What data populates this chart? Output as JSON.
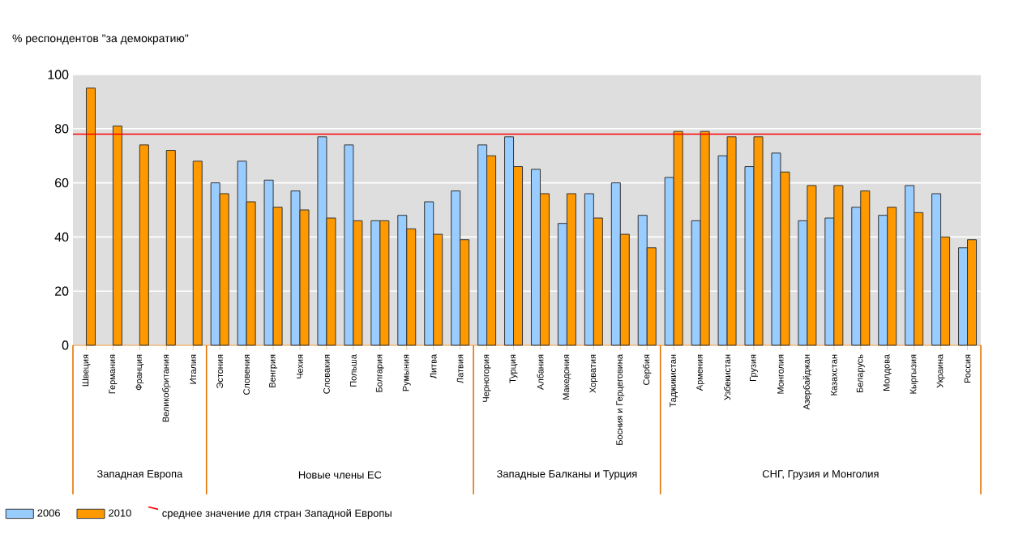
{
  "chart_data": {
    "type": "bar",
    "ylabel": "% респондентов \"за демократию\"",
    "categories": [
      "Швеция",
      "Германия",
      "Франция",
      "Великобритания",
      "Италия",
      "Эстония",
      "Словения",
      "Венгрия",
      "Чехия",
      "Словакия",
      "Польша",
      "Болгария",
      "Румыния",
      "Литва",
      "Латвия",
      "Черногория",
      "Турция",
      "Албания",
      "Македония",
      "Хорватия",
      "Босния и Герцеговина",
      "Сербия",
      "Таджикистан",
      "Армения",
      "Узбекистан",
      "Грузия",
      "Монголия",
      "Азербайджан",
      "Казахстан",
      "Беларусь",
      "Молдова",
      "Кыргызия",
      "Украина",
      "Россия"
    ],
    "series": [
      {
        "name": "2006",
        "color": "#99ccff",
        "values": [
          null,
          null,
          null,
          null,
          null,
          60,
          68,
          61,
          57,
          77,
          74,
          46,
          48,
          53,
          57,
          74,
          77,
          65,
          45,
          56,
          60,
          48,
          62,
          46,
          70,
          66,
          71,
          46,
          47,
          51,
          48,
          59,
          56,
          36
        ]
      },
      {
        "name": "2010",
        "color": "#ff9900",
        "values": [
          95,
          81,
          74,
          72,
          68,
          56,
          53,
          51,
          50,
          47,
          46,
          46,
          43,
          41,
          39,
          70,
          66,
          56,
          56,
          47,
          41,
          36,
          79,
          79,
          77,
          77,
          64,
          59,
          59,
          57,
          51,
          49,
          40,
          39
        ]
      }
    ],
    "ylim": [
      0,
      100
    ],
    "yticks": [
      0,
      20,
      40,
      60,
      80,
      100
    ],
    "grid": "y",
    "legend": "bottom left",
    "ref_lines": [
      {
        "axis": "y",
        "value": 78,
        "label": "среднее значение для стран Западной Европы",
        "color": "#ff0000"
      }
    ],
    "annotations": [
      "Западная Европа",
      "Новые члены ЕС",
      "Западные Балканы и Турция",
      "СНГ, Грузия и Монголия"
    ]
  }
}
